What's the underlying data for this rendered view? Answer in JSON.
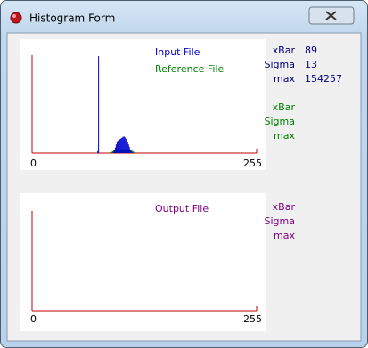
{
  "window": {
    "title": "Histogram Form"
  },
  "input_plot": {
    "xlim": [
      0,
      255
    ],
    "xticks": [
      0,
      255
    ],
    "ylim": [
      0,
      170000
    ],
    "series": [
      {
        "name": "Input File",
        "color": "#0000cc",
        "bins": [
          74,
          75,
          92,
          93,
          94,
          95,
          96,
          97,
          98,
          99,
          100,
          101,
          102,
          103,
          104,
          105,
          106,
          107,
          108,
          109,
          110,
          111,
          112,
          113
        ],
        "counts": [
          3000,
          154257,
          2000,
          5000,
          9000,
          14000,
          18000,
          20000,
          21000,
          22000,
          23000,
          24000,
          25000,
          26000,
          26500,
          25000,
          23000,
          20000,
          17000,
          14000,
          10000,
          6000,
          3000,
          1000
        ]
      },
      {
        "name": "Reference File",
        "color": "#008000",
        "bins": [
          89,
          90,
          91,
          92,
          93,
          94,
          95,
          96,
          97,
          98,
          99,
          100,
          101,
          102,
          103,
          104,
          105,
          106,
          107,
          108,
          109,
          110,
          111,
          112,
          113,
          114,
          115,
          116
        ],
        "counts": [
          1000,
          2000,
          3000,
          4000,
          5000,
          5500,
          6000,
          6000,
          6000,
          6000,
          6000,
          6000,
          6000,
          6000,
          6000,
          6000,
          6000,
          6000,
          6000,
          6000,
          6000,
          6000,
          5500,
          5000,
          4000,
          3000,
          2000,
          1000
        ]
      }
    ]
  },
  "input_stats": {
    "labels": [
      "xBar",
      "Sigma",
      "max"
    ],
    "values": [
      89,
      13,
      154257
    ],
    "color": "#000080"
  },
  "reference_stats": {
    "labels": [
      "xBar",
      "Sigma",
      "max"
    ],
    "color": "#008000"
  },
  "output_plot": {
    "title": "Output File",
    "xlim": [
      0,
      255
    ],
    "xticks": [
      0,
      255
    ]
  },
  "output_stats": {
    "labels": [
      "xBar",
      "Sigma",
      "max"
    ],
    "color": "#800080"
  }
}
